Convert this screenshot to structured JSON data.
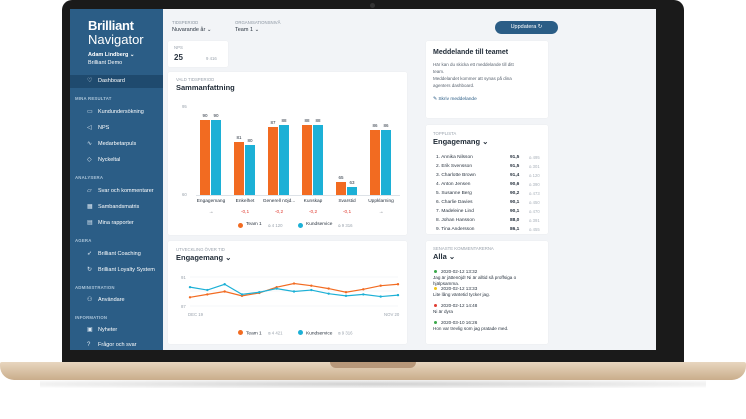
{
  "sidebar": {
    "logo_line1": "Brilliant",
    "logo_line2": "Navigator",
    "user": "Adam Lindberg ⌄",
    "org": "Brilliant Demo",
    "dashboard": "Dashboard",
    "sec_results": "MINA RESULTAT",
    "kund": "Kundundersökning",
    "nps": "NPS",
    "medarb": "Medarbetarpuls",
    "nyckeltal": "Nyckeltal",
    "sec_analys": "ANALYSERA",
    "svar": "Svar och kommentarer",
    "samband": "Sambandsmatris",
    "rapporter": "Mina rapporter",
    "sec_agera": "AGERA",
    "coaching": "Brilliant Coaching",
    "loyalty": "Brilliant Loyalty System",
    "sec_admin": "ADMINISTRATION",
    "anvandare": "Användare",
    "sec_info": "INFORMATION",
    "nyheter": "Nyheter",
    "fragor": "Frågor och svar"
  },
  "topbar": {
    "period_label": "TIDSPERIOD",
    "period_value": "Nuvarande år ⌄",
    "org_label": "ORGANISATIONSNIVÅ",
    "org_value": "Team 1 ⌄",
    "update_label": "Uppdatera ↻"
  },
  "nps_card": {
    "label": "NPS",
    "value": "25",
    "count": "9 416"
  },
  "summary": {
    "subtitle": "VALD TIDSPERIOD",
    "title": "Sammanfattning"
  },
  "chart_data": [
    {
      "type": "bar",
      "title": "Sammanfattning",
      "categories": [
        "Engagemang",
        "Enkelhet",
        "Generell nöjd...",
        "Kunskap",
        "Svarstid",
        "Uppklarning"
      ],
      "series": [
        {
          "name": "Team 1",
          "values": [
            90,
            81,
            87,
            88,
            65,
            86
          ]
        },
        {
          "name": "Kundservice",
          "values": [
            90,
            80,
            88,
            88,
            63,
            86
          ]
        }
      ],
      "deltas": [
        "→",
        "-0,1",
        "-0,2",
        "-0,2",
        "-0,1",
        "→"
      ],
      "ylim": [
        60,
        95
      ],
      "yticks": [
        60,
        95
      ],
      "legend": [
        {
          "name": "Team 1",
          "count": "4 120"
        },
        {
          "name": "Kundservice",
          "count": "9 316"
        }
      ]
    },
    {
      "type": "line",
      "title": "Engagemang",
      "x_start": "DEC 19",
      "x_end": "NOV 20",
      "yticks": [
        91,
        87
      ],
      "series": [
        {
          "name": "Team 1",
          "values": [
            88.2,
            88.6,
            89.0,
            88.4,
            88.8,
            89.6,
            90.1,
            89.8,
            89.4,
            88.9,
            89.3,
            89.8,
            90.0
          ]
        },
        {
          "name": "Kundservice",
          "values": [
            89.6,
            89.2,
            90.0,
            88.6,
            88.9,
            89.4,
            89.0,
            89.2,
            88.7,
            88.4,
            88.6,
            88.3,
            88.5
          ]
        }
      ],
      "legend": [
        {
          "name": "Team 1",
          "count": "4 421"
        },
        {
          "name": "Kundservice",
          "count": "9 316"
        }
      ]
    }
  ],
  "trend": {
    "subtitle": "UTVECKLING ÖVER TID",
    "title": "Engagemang ⌄"
  },
  "message": {
    "title": "Meddelande till teamet",
    "line1": "Här kan du skicka ett meddelande till ditt",
    "line2": "team.",
    "line3": "Meddelandet kommer att synas på dina",
    "line4": "agenters dashboard.",
    "link": "Skriv meddelande"
  },
  "toplist": {
    "subtitle": "TOPPLISTA",
    "title": "Engagemang ⌄",
    "rows": [
      {
        "name": "1. Annika Nilsson",
        "value": "91,5",
        "count": "⍝ 495"
      },
      {
        "name": "2. Erik Svensson",
        "value": "91,5",
        "count": "⍝ 301"
      },
      {
        "name": "3. Charlotte Brown",
        "value": "91,4",
        "count": "⍝ 120"
      },
      {
        "name": "4. Anton Jensen",
        "value": "90,6",
        "count": "⍝ 390"
      },
      {
        "name": "5. Susanne Berg",
        "value": "90,2",
        "count": "⍝ 473"
      },
      {
        "name": "6. Charlie Davies",
        "value": "90,1",
        "count": "⍝ 450"
      },
      {
        "name": "7. Madeleine Lind",
        "value": "90,1",
        "count": "⍝ 470"
      },
      {
        "name": "8. Johan Hansson",
        "value": "88,0",
        "count": "⍝ 391"
      },
      {
        "name": "9. Tina Andersson",
        "value": "86,1",
        "count": "⍝ 455"
      }
    ]
  },
  "comments": {
    "subtitle": "SENASTE KOMMENTARERNA",
    "title": "Alla ⌄",
    "items": [
      {
        "date": "2020-02-12 13:32",
        "text1": "Jag är jättenöjd! Ni är alltid så proffsiga o",
        "text2": "hjälpsamma.",
        "color": "#3aa84a"
      },
      {
        "date": "2020-02-12 13:33",
        "text1": "Lite lång väntetid tycker jag.",
        "text2": "",
        "color": "#f0c419"
      },
      {
        "date": "2020-02-12 14:48",
        "text1": "Ni är dyra",
        "text2": "",
        "color": "#e03c31"
      },
      {
        "date": "2020-03-10 16:26",
        "text1": "Hon var trevlig som jag pratade med.",
        "text2": "",
        "color": "#3aa84a"
      }
    ]
  }
}
